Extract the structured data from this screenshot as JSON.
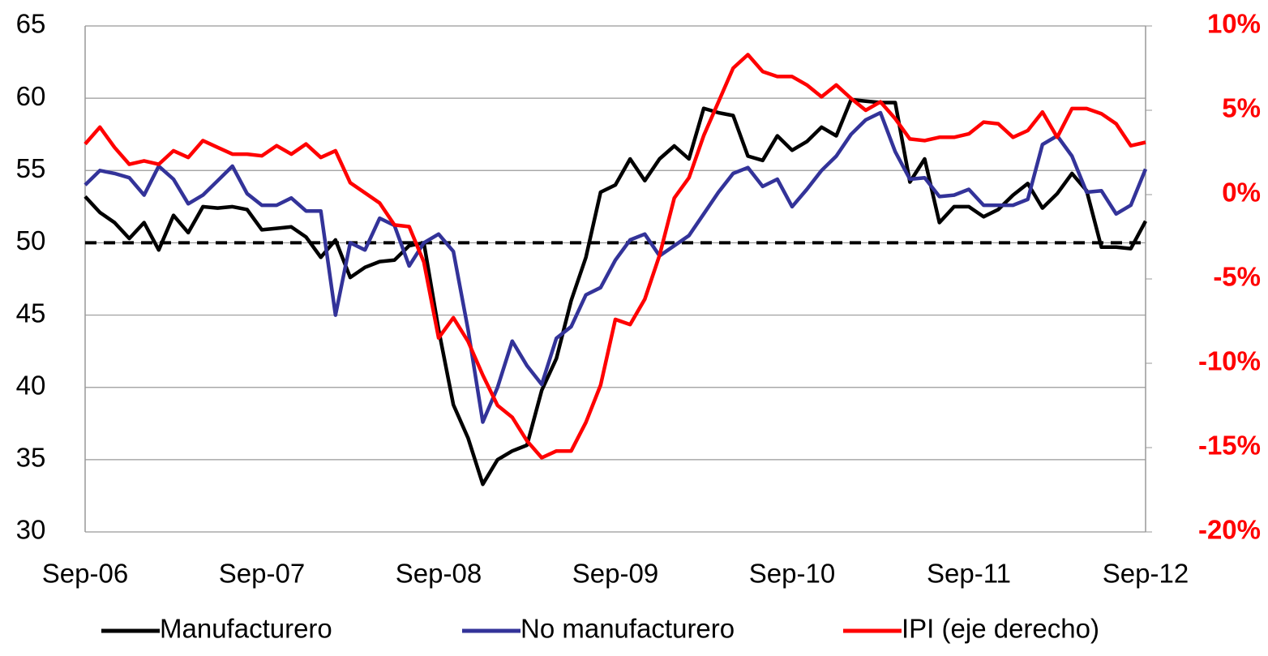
{
  "chart_data": {
    "type": "line",
    "categories": [
      "Sep-06",
      null,
      null,
      null,
      null,
      null,
      null,
      null,
      null,
      null,
      null,
      null,
      "Sep-07",
      null,
      null,
      null,
      null,
      null,
      null,
      null,
      null,
      null,
      null,
      null,
      "Sep-08",
      null,
      null,
      null,
      null,
      null,
      null,
      null,
      null,
      null,
      null,
      null,
      "Sep-09",
      null,
      null,
      null,
      null,
      null,
      null,
      null,
      null,
      null,
      null,
      null,
      "Sep-10",
      null,
      null,
      null,
      null,
      null,
      null,
      null,
      null,
      null,
      null,
      null,
      "Sep-11",
      null,
      null,
      null,
      null,
      null,
      null,
      null,
      null,
      null,
      null,
      null,
      "Sep-12"
    ],
    "series": [
      {
        "name": "Manufacturero",
        "color": "#000000",
        "values": [
          53.2,
          52.1,
          51.4,
          50.3,
          51.4,
          49.5,
          51.9,
          50.7,
          52.5,
          52.4,
          52.5,
          52.3,
          50.9,
          51.0,
          51.1,
          50.4,
          49.0,
          50.2,
          47.6,
          48.3,
          48.7,
          48.8,
          49.8,
          50.0,
          44.0,
          38.8,
          36.5,
          33.3,
          35.0,
          35.6,
          36.0,
          39.8,
          42.0,
          46.0,
          49.0,
          53.5,
          54.0,
          55.8,
          54.3,
          55.8,
          56.7,
          55.8,
          59.3,
          59.0,
          58.8,
          56.0,
          55.7,
          57.4,
          56.4,
          57.0,
          58.0,
          57.4,
          59.9,
          59.8,
          59.7,
          59.7,
          54.2,
          55.8,
          51.4,
          52.5,
          52.5,
          51.8,
          52.3,
          53.3,
          54.1,
          52.4,
          53.4,
          54.8,
          53.6,
          49.7,
          49.7,
          49.6,
          51.5
        ]
      },
      {
        "name": "No manufacturero",
        "color": "#333399",
        "values": [
          54.0,
          55.0,
          54.8,
          54.5,
          53.3,
          55.3,
          54.4,
          52.7,
          53.3,
          54.3,
          55.3,
          53.4,
          52.6,
          52.6,
          53.1,
          52.2,
          52.2,
          45.0,
          50.0,
          49.5,
          51.7,
          51.2,
          48.4,
          50.0,
          50.6,
          49.4,
          44.0,
          37.6,
          40.0,
          43.2,
          41.5,
          40.2,
          43.4,
          44.2,
          46.4,
          46.9,
          48.8,
          50.2,
          50.6,
          49.1,
          49.8,
          50.5,
          52.0,
          53.5,
          54.8,
          55.2,
          53.9,
          54.4,
          52.5,
          53.7,
          55.0,
          56.0,
          57.5,
          58.5,
          59.0,
          56.3,
          54.4,
          54.5,
          53.2,
          53.3,
          53.7,
          52.6,
          52.6,
          52.6,
          53.0,
          56.8,
          57.4,
          56.0,
          53.5,
          53.6,
          52.0,
          52.6,
          55.1
        ]
      },
      {
        "name": "IPI (eje derecho)",
        "color": "#ff0000",
        "axis": "y2",
        "values": [
          3.0,
          4.0,
          2.8,
          1.8,
          2.0,
          1.8,
          2.6,
          2.2,
          3.2,
          2.8,
          2.4,
          2.4,
          2.3,
          2.9,
          2.4,
          3.0,
          2.2,
          2.6,
          0.7,
          0.1,
          -0.5,
          -1.8,
          -1.9,
          -4.0,
          -8.5,
          -7.3,
          -8.7,
          -10.7,
          -12.5,
          -13.2,
          -14.6,
          -15.6,
          -15.2,
          -15.2,
          -13.5,
          -11.3,
          -7.4,
          -7.7,
          -6.2,
          -3.6,
          -0.2,
          1.0,
          3.5,
          5.5,
          7.5,
          8.3,
          7.3,
          7.0,
          7.0,
          6.5,
          5.8,
          6.5,
          5.7,
          5.0,
          5.5,
          4.5,
          3.3,
          3.2,
          3.4,
          3.4,
          3.6,
          4.3,
          4.2,
          3.4,
          3.8,
          4.9,
          3.4,
          5.1,
          5.1,
          4.8,
          4.2,
          2.9,
          3.1
        ]
      }
    ],
    "ylim": [
      30,
      65
    ],
    "yticks": [
      30,
      35,
      40,
      45,
      50,
      55,
      60,
      65
    ],
    "y2lim": [
      -20,
      10
    ],
    "y2ticks": [
      {
        "value": -20,
        "label": "-20%"
      },
      {
        "value": -15,
        "label": "-15%"
      },
      {
        "value": -10,
        "label": "-10%"
      },
      {
        "value": -5,
        "label": "-5%"
      },
      {
        "value": 0,
        "label": "0%"
      },
      {
        "value": 5,
        "label": "5%"
      },
      {
        "value": 10,
        "label": "10%"
      }
    ],
    "reference_line": 50,
    "grid": true,
    "legend": "bottom"
  }
}
